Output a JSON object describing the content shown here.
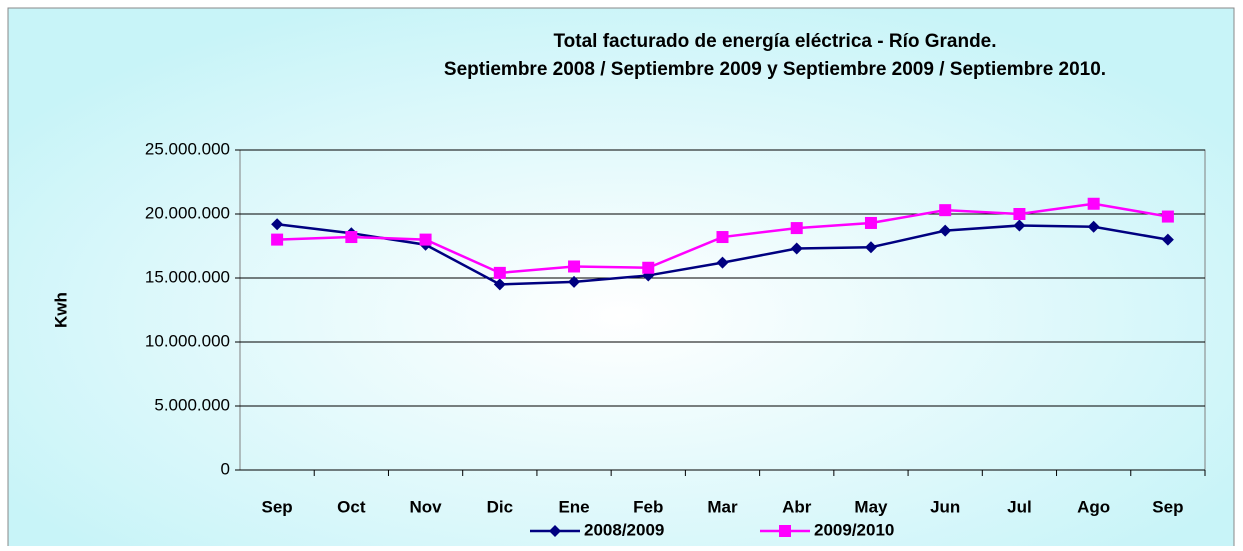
{
  "chart_data": {
    "type": "line",
    "title": "Total facturado de energía eléctrica - Río Grande.",
    "subtitle": "Septiembre 2008 / Septiembre 2009 y Septiembre 2009 / Septiembre 2010.",
    "ylabel": "Kwh",
    "categories": [
      "Sep",
      "Oct",
      "Nov",
      "Dic",
      "Ene",
      "Feb",
      "Mar",
      "Abr",
      "May",
      "Jun",
      "Jul",
      "Ago",
      "Sep"
    ],
    "series": [
      {
        "name": "2008/2009",
        "color": "#000080",
        "marker": "diamond",
        "values": [
          19200000,
          18500000,
          17600000,
          14500000,
          14700000,
          15200000,
          16200000,
          17300000,
          17400000,
          18700000,
          19100000,
          19000000,
          18000000
        ]
      },
      {
        "name": "2009/2010",
        "color": "#ff00ff",
        "marker": "square",
        "values": [
          18000000,
          18200000,
          18000000,
          15400000,
          15900000,
          15800000,
          18200000,
          18900000,
          19300000,
          20300000,
          20000000,
          20800000,
          19800000
        ]
      }
    ],
    "ylim": [
      0,
      25000000
    ],
    "yticks": [
      0,
      {
        "value": 5000000,
        "label": "5.000.000"
      },
      {
        "value": 10000000,
        "label": "10.000.000"
      },
      {
        "value": 15000000,
        "label": "15.000.000"
      },
      {
        "value": 20000000,
        "label": "20.000.000"
      },
      {
        "value": 25000000,
        "label": "25.000.000"
      }
    ],
    "grid": true,
    "legend": "bottom"
  }
}
